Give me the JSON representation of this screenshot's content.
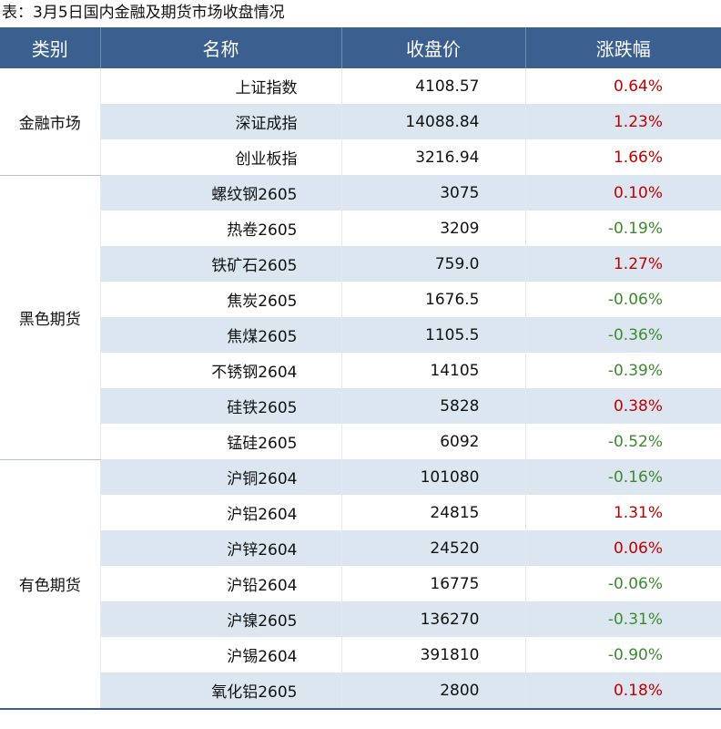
{
  "title": "表：3月5日国内金融及期货市场收盘情况",
  "columns": [
    "类别",
    "名称",
    "收盘价",
    "涨跌幅"
  ],
  "colors": {
    "header": "#3b6090",
    "stripe": "#dce6f1",
    "up": "#c00000",
    "down": "#3d8a2e"
  },
  "groups": [
    {
      "category": "金融市场",
      "rows": [
        {
          "name": "上证指数",
          "price": "4108.57",
          "change": "0.64%"
        },
        {
          "name": "深证成指",
          "price": "14088.84",
          "change": "1.23%"
        },
        {
          "name": "创业板指",
          "price": "3216.94",
          "change": "1.66%"
        }
      ]
    },
    {
      "category": "黑色期货",
      "rows": [
        {
          "name": "螺纹钢2605",
          "price": "3075",
          "change": "0.10%"
        },
        {
          "name": "热卷2605",
          "price": "3209",
          "change": "-0.19%"
        },
        {
          "name": "铁矿石2605",
          "price": "759.0",
          "change": "1.27%"
        },
        {
          "name": "焦炭2605",
          "price": "1676.5",
          "change": "-0.06%"
        },
        {
          "name": "焦煤2605",
          "price": "1105.5",
          "change": "-0.36%"
        },
        {
          "name": "不锈钢2604",
          "price": "14105",
          "change": "-0.39%"
        },
        {
          "name": "硅铁2605",
          "price": "5828",
          "change": "0.38%"
        },
        {
          "name": "锰硅2605",
          "price": "6092",
          "change": "-0.52%"
        }
      ]
    },
    {
      "category": "有色期货",
      "rows": [
        {
          "name": "沪铜2604",
          "price": "101080",
          "change": "-0.16%"
        },
        {
          "name": "沪铝2604",
          "price": "24815",
          "change": "1.31%"
        },
        {
          "name": "沪锌2604",
          "price": "24520",
          "change": "0.06%"
        },
        {
          "name": "沪铅2604",
          "price": "16775",
          "change": "-0.06%"
        },
        {
          "name": "沪镍2605",
          "price": "136270",
          "change": "-0.31%"
        },
        {
          "name": "沪锡2604",
          "price": "391810",
          "change": "-0.90%"
        },
        {
          "name": "氧化铝2605",
          "price": "2800",
          "change": "0.18%"
        }
      ]
    }
  ]
}
